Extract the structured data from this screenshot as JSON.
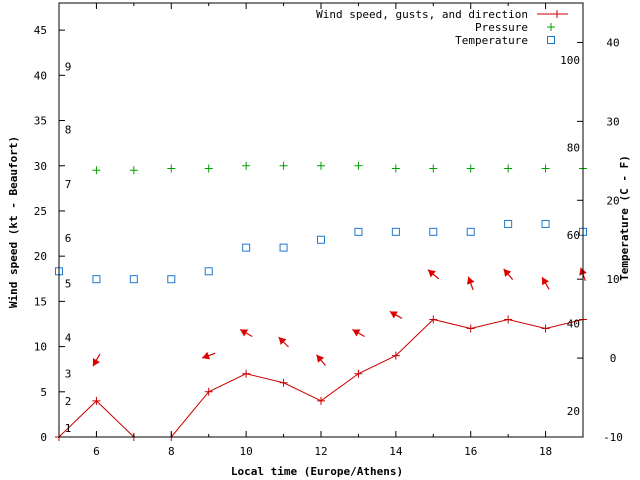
{
  "chart_data": {
    "type": "line",
    "xlabel": "Local time (Europe/Athens)",
    "ylabel": "Wind speed (kt - Beaufort)",
    "y2label": "Temperature (C - F)",
    "xlim": [
      5,
      19
    ],
    "ylim": [
      0,
      48
    ],
    "y2lim": [
      -10,
      45
    ],
    "x_ticks": [
      6,
      8,
      10,
      12,
      14,
      16,
      18
    ],
    "y_ticks": [
      0,
      5,
      10,
      15,
      20,
      25,
      30,
      35,
      40,
      45
    ],
    "y2_ticks": [
      -10,
      0,
      10,
      20,
      30,
      40
    ],
    "beaufort_labels": [
      {
        "text": "1",
        "kt": 1
      },
      {
        "text": "2",
        "kt": 4
      },
      {
        "text": "3",
        "kt": 7
      },
      {
        "text": "4",
        "kt": 11
      },
      {
        "text": "5",
        "kt": 17
      },
      {
        "text": "6",
        "kt": 22
      },
      {
        "text": "7",
        "kt": 28
      },
      {
        "text": "8",
        "kt": 34
      },
      {
        "text": "9",
        "kt": 41
      }
    ],
    "fahrenheit_labels": [
      {
        "text": "20",
        "c": -6.7
      },
      {
        "text": "40",
        "c": 4.4
      },
      {
        "text": "60",
        "c": 15.6
      },
      {
        "text": "80",
        "c": 26.7
      },
      {
        "text": "100",
        "c": 37.8
      }
    ],
    "legend_position": "top-right",
    "series": [
      {
        "name": "Wind speed, gusts, and direction",
        "style": "line-plus",
        "color": "#cc0000",
        "x": [
          5,
          6,
          7,
          8,
          9,
          10,
          11,
          12,
          13,
          14,
          15,
          16,
          17,
          18,
          19
        ],
        "values": [
          0,
          4,
          0,
          0,
          5,
          7,
          6,
          4,
          7,
          9,
          13,
          12,
          13,
          12,
          13
        ]
      },
      {
        "name": "Pressure",
        "style": "plus",
        "color": "#00a000",
        "x": [
          6,
          7,
          8,
          9,
          10,
          11,
          12,
          13,
          14,
          15,
          16,
          17,
          18,
          19
        ],
        "values": [
          29.5,
          29.5,
          29.7,
          29.7,
          30,
          30,
          30,
          30,
          29.7,
          29.7,
          29.7,
          29.7,
          29.7,
          29.7
        ]
      },
      {
        "name": "Temperature",
        "style": "square",
        "color": "#1e78d2",
        "axis": "y2",
        "x": [
          5,
          6,
          7,
          8,
          9,
          10,
          11,
          12,
          13,
          14,
          15,
          16,
          17,
          18,
          19
        ],
        "values": [
          11,
          10,
          10,
          10,
          11,
          14,
          14,
          15,
          16,
          16,
          16,
          16,
          17,
          17,
          16
        ]
      }
    ],
    "wind_arrows": {
      "color": "#dd0000",
      "x": [
        6,
        9,
        10,
        11,
        12,
        13,
        14,
        15,
        16,
        17,
        18,
        19
      ],
      "y": [
        8.5,
        9,
        11.5,
        10.5,
        8.5,
        11.5,
        13.5,
        18,
        17,
        18,
        17,
        18
      ],
      "angle_deg": [
        240,
        200,
        150,
        135,
        130,
        150,
        150,
        140,
        110,
        130,
        120,
        110
      ]
    }
  }
}
